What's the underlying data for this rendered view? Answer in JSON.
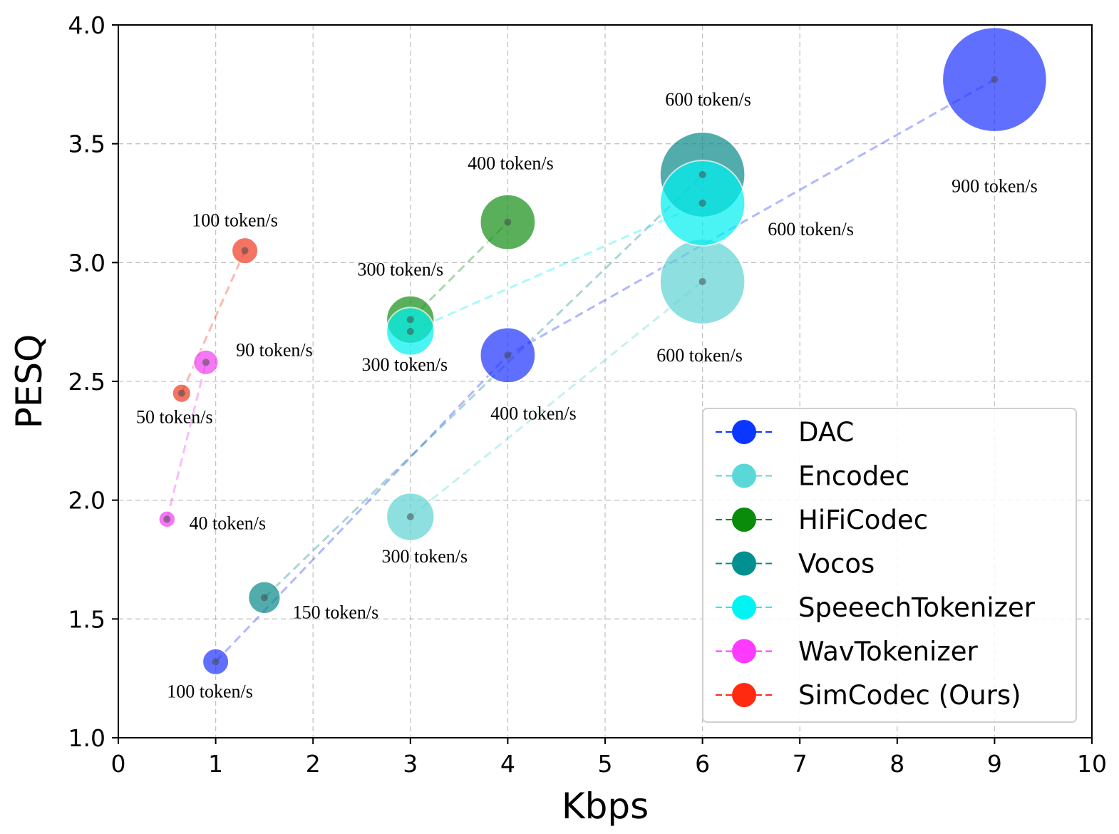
{
  "chart_data": {
    "type": "scatter",
    "title": "",
    "xlabel": "Kbps",
    "ylabel": "PESQ",
    "xlim": [
      0,
      10
    ],
    "ylim": [
      1.0,
      4.0
    ],
    "xticks": [
      "0",
      "1",
      "2",
      "3",
      "4",
      "5",
      "6",
      "7",
      "8",
      "9",
      "10"
    ],
    "yticks": [
      "1.0",
      "1.5",
      "2.0",
      "2.5",
      "3.0",
      "3.5",
      "4.0"
    ],
    "grid": true,
    "legend_position": "bottom-right",
    "series": [
      {
        "name": "DAC",
        "color": "#1f33ff",
        "legend_color": "#0a36ff",
        "points": [
          {
            "x": 1,
            "y": 1.32,
            "tokens": 100,
            "label": "100 token/s"
          },
          {
            "x": 4,
            "y": 2.61,
            "tokens": 400,
            "label": "400 token/s"
          },
          {
            "x": 9,
            "y": 3.77,
            "tokens": 900,
            "label": "900 token/s"
          }
        ]
      },
      {
        "name": "Encodec",
        "color": "#5fd3d3",
        "legend_color": "#5ad8d8",
        "points": [
          {
            "x": 3,
            "y": 1.93,
            "tokens": 300,
            "label": "300 token/s"
          },
          {
            "x": 6,
            "y": 2.92,
            "tokens": 600,
            "label": "600 token/s"
          }
        ]
      },
      {
        "name": "HiFiCodec",
        "color": "#159015",
        "legend_color": "#0a8c0a",
        "points": [
          {
            "x": 3,
            "y": 2.76,
            "tokens": 300,
            "label": "300 token/s"
          },
          {
            "x": 4,
            "y": 3.17,
            "tokens": 400,
            "label": "400 token/s"
          }
        ]
      },
      {
        "name": "Vocos",
        "color": "#0b8a8a",
        "legend_color": "#009090",
        "points": [
          {
            "x": 1.5,
            "y": 1.59,
            "tokens": 150,
            "label": "150 token/s"
          },
          {
            "x": 6,
            "y": 3.37,
            "tokens": 600,
            "label": "600 token/s"
          }
        ]
      },
      {
        "name": "SpeeechTokenizer",
        "color": "#00f0f0",
        "legend_color": "#00f4f4",
        "points": [
          {
            "x": 3,
            "y": 2.71,
            "tokens": 300,
            "label": "300 token/s"
          },
          {
            "x": 6,
            "y": 3.25,
            "tokens": 600,
            "label": "600 token/s"
          }
        ]
      },
      {
        "name": "WavTokenizer",
        "color": "#f040f0",
        "legend_color": "#ff3aff",
        "points": [
          {
            "x": 0.5,
            "y": 1.92,
            "tokens": 40,
            "label": "40 token/s"
          },
          {
            "x": 0.9,
            "y": 2.58,
            "tokens": 90,
            "label": "90 token/s"
          }
        ]
      },
      {
        "name": "SimCodec (Ours)",
        "color": "#f03a22",
        "legend_color": "#ff2a10",
        "points": [
          {
            "x": 0.65,
            "y": 2.45,
            "tokens": 50,
            "label": "50 token/s"
          },
          {
            "x": 1.3,
            "y": 3.05,
            "tokens": 100,
            "label": "100 token/s"
          }
        ]
      }
    ]
  }
}
